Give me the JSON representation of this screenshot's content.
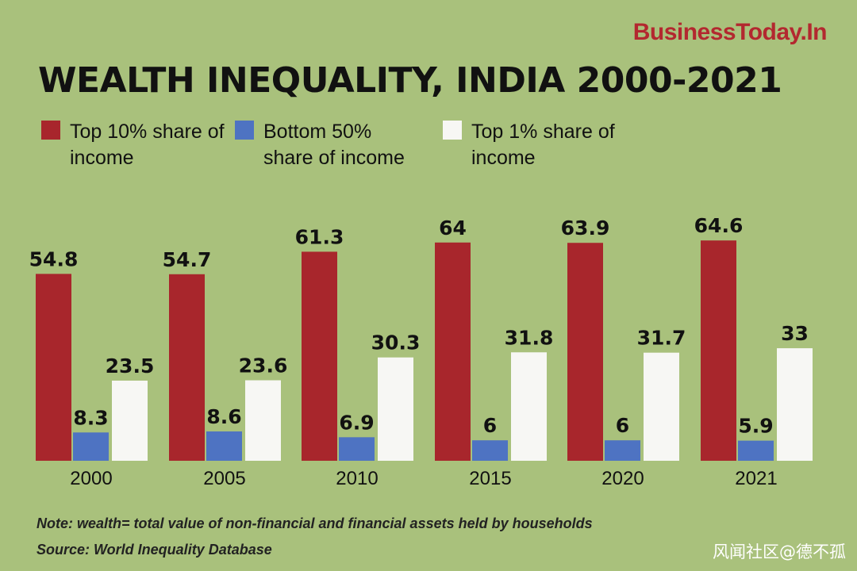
{
  "brand": "BusinessToday.In",
  "title": "WEALTH INEQUALITY, INDIA 2000-2021",
  "legend": [
    {
      "label": "Top 10% share of income",
      "color": "#a8262c"
    },
    {
      "label": "Bottom 50% share of income",
      "color": "#4e73c2"
    },
    {
      "label": "Top 1% share of income",
      "color": "#f7f7f4"
    }
  ],
  "chart_data": {
    "type": "bar",
    "title": "WEALTH INEQUALITY, INDIA 2000-2021",
    "categories": [
      "2000",
      "2005",
      "2010",
      "2015",
      "2020",
      "2021"
    ],
    "series": [
      {
        "name": "Top 10% share of income",
        "color": "#a8262c",
        "values": [
          54.8,
          54.7,
          61.3,
          64,
          63.9,
          64.6
        ],
        "labels": [
          "54.8",
          "54.7",
          "61.3",
          "64",
          "63.9",
          "64.6"
        ]
      },
      {
        "name": "Bottom 50% share of income",
        "color": "#4e73c2",
        "values": [
          8.3,
          8.6,
          6.9,
          6,
          6,
          5.9
        ],
        "labels": [
          "8.3",
          "8.6",
          "6.9",
          "6",
          "6",
          "5.9"
        ]
      },
      {
        "name": "Top 1% share of income",
        "color": "#f7f7f4",
        "values": [
          23.5,
          23.6,
          30.3,
          31.8,
          31.7,
          33
        ],
        "labels": [
          "23.5",
          "23.6",
          "30.3",
          "31.8",
          "31.7",
          "33"
        ]
      }
    ],
    "xlabel": "",
    "ylabel": "",
    "ylim": [
      0,
      70
    ],
    "grid": false,
    "legend_position": "top-left"
  },
  "notes": {
    "note": "Note: wealth= total value of non-financial and financial assets held by households",
    "source": "Source: World Inequality Database"
  },
  "watermark": "风闻社区@德不孤"
}
